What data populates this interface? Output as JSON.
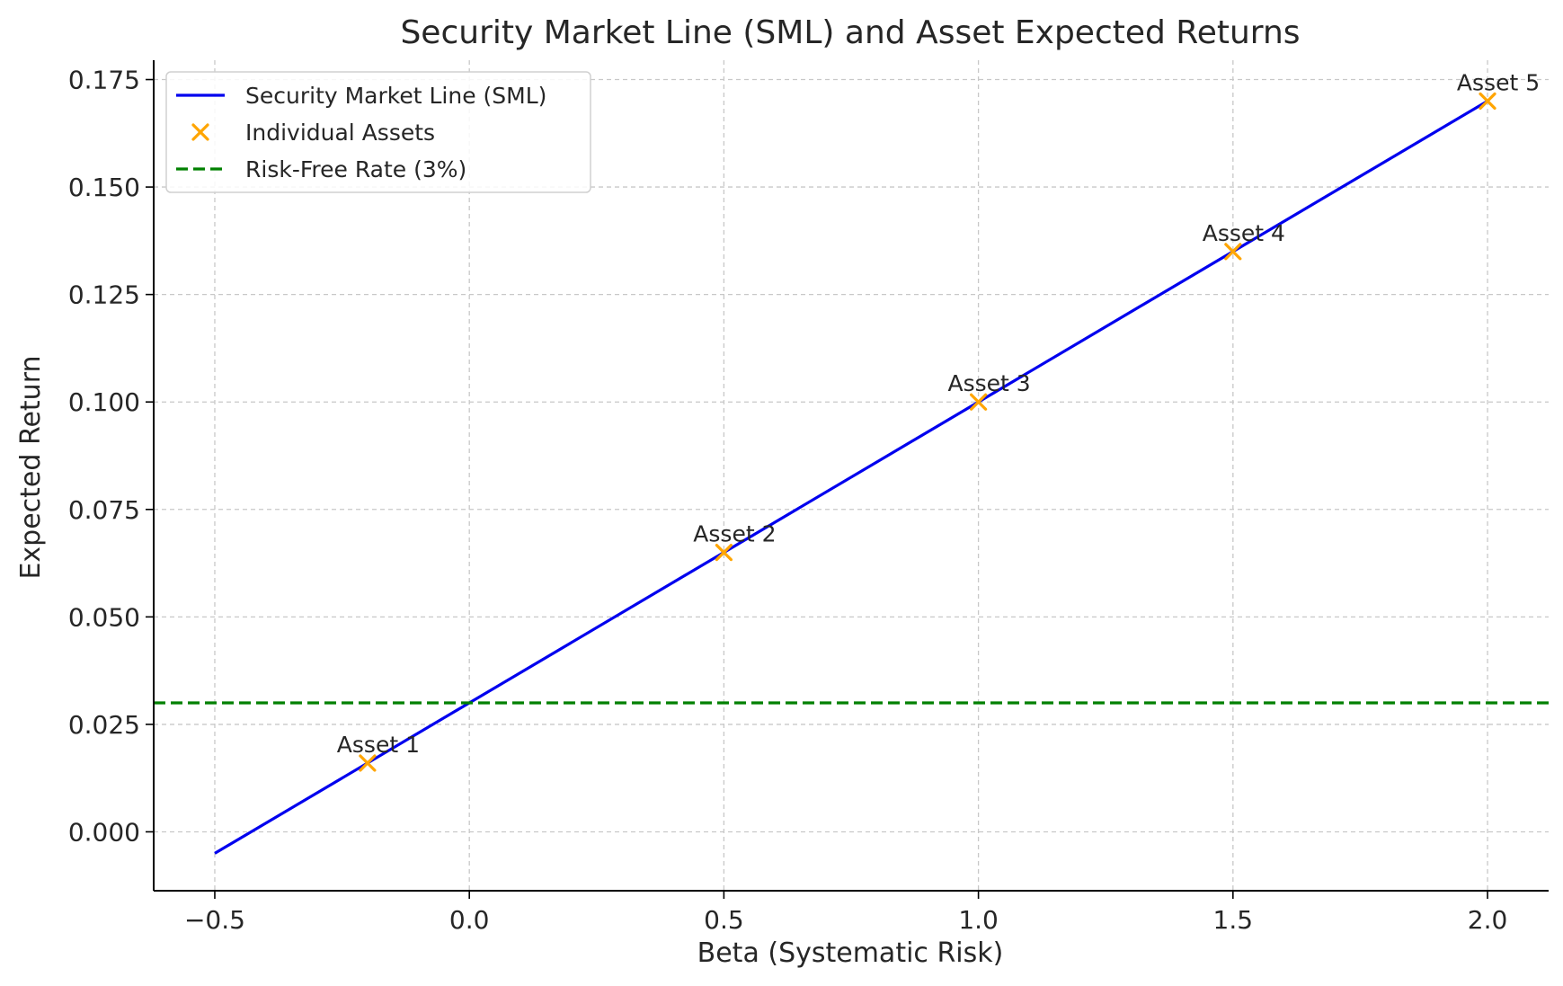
{
  "chart_data": {
    "type": "line",
    "title": "Security Market Line (SML) and Asset Expected Returns",
    "xlabel": "Beta (Systematic Risk)",
    "ylabel": "Expected Return",
    "xlim": [
      -0.62,
      2.12
    ],
    "ylim": [
      -0.0137,
      0.1795
    ],
    "x_ticks": [
      -0.5,
      0.0,
      0.5,
      1.0,
      1.5,
      2.0
    ],
    "x_tick_labels": [
      "−0.5",
      "0.0",
      "0.5",
      "1.0",
      "1.5",
      "2.0"
    ],
    "y_ticks": [
      0.0,
      0.025,
      0.05,
      0.075,
      0.1,
      0.125,
      0.15,
      0.175
    ],
    "y_tick_labels": [
      "0.000",
      "0.025",
      "0.050",
      "0.075",
      "0.100",
      "0.125",
      "0.150",
      "0.175"
    ],
    "grid": true,
    "legend_position": "top-left",
    "series": [
      {
        "name": "Security Market Line (SML)",
        "kind": "line",
        "color": "#0000ee",
        "x": [
          -0.5,
          2.0
        ],
        "y": [
          -0.005,
          0.17
        ]
      },
      {
        "name": "Individual Assets",
        "kind": "scatter",
        "marker": "x",
        "color": "#ffa500",
        "x": [
          -0.2,
          0.5,
          1.0,
          1.5,
          2.0
        ],
        "y": [
          0.016,
          0.065,
          0.1,
          0.135,
          0.17
        ],
        "labels": [
          "Asset 1",
          "Asset 2",
          "Asset 3",
          "Asset 4",
          "Asset 5"
        ]
      },
      {
        "name": "Risk-Free Rate (3%)",
        "kind": "hline",
        "style": "dashed",
        "color": "#008000",
        "y": 0.03
      }
    ]
  }
}
